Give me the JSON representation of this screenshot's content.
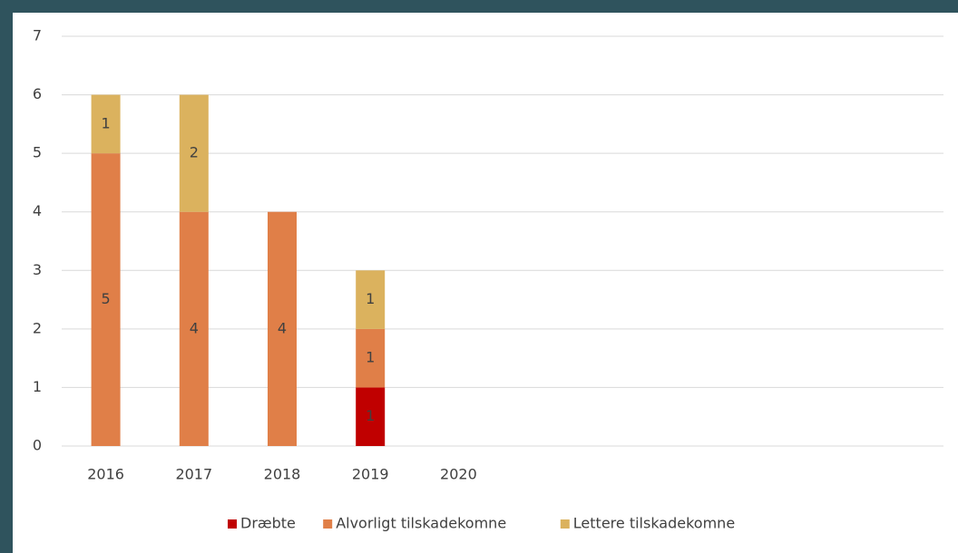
{
  "chart_data": {
    "type": "stacked_bar",
    "categories": [
      "2016",
      "2017",
      "2018",
      "2019",
      "2020",
      null,
      null,
      null,
      null,
      null
    ],
    "series": [
      {
        "name": "Dræbte",
        "color": "#c00000",
        "values": [
          0,
          0,
          0,
          1,
          0,
          null,
          null,
          null,
          null,
          null
        ]
      },
      {
        "name": "Alvorligt tilskadekomne",
        "color": "#e07f48",
        "values": [
          5,
          4,
          4,
          1,
          0,
          null,
          null,
          null,
          null,
          null
        ]
      },
      {
        "name": "Lettere tilskadekomne",
        "color": "#dbb25e",
        "values": [
          1,
          2,
          0,
          1,
          0,
          null,
          null,
          null,
          null,
          null
        ]
      }
    ],
    "ylim": [
      0,
      7
    ],
    "yticks": [
      0,
      1,
      2,
      3,
      4,
      5,
      6,
      7
    ],
    "grid": true,
    "legend": "bottom"
  }
}
